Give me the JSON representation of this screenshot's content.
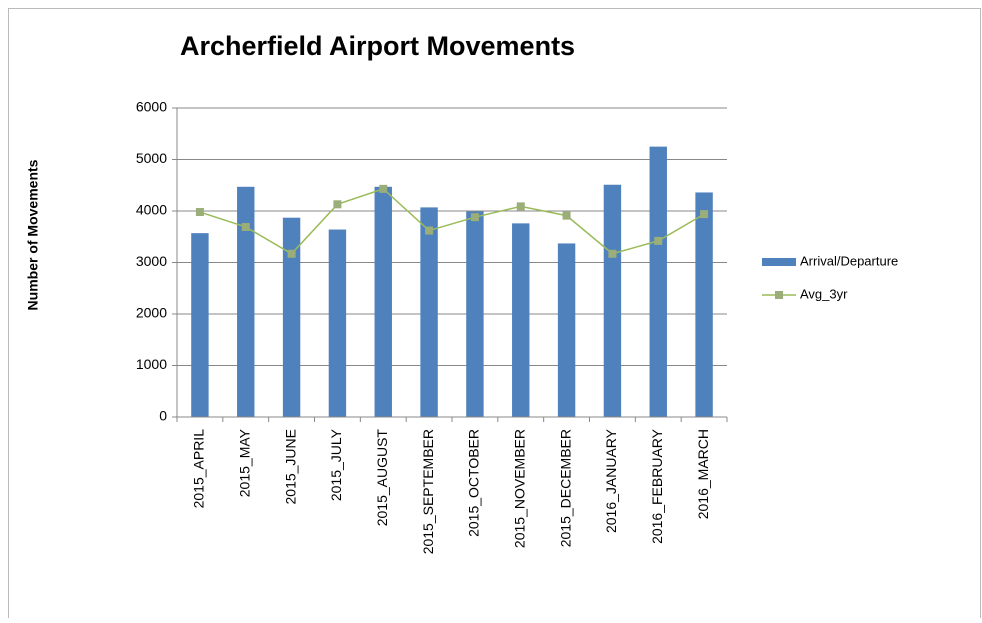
{
  "chart_data": {
    "type": "bar",
    "title": "Archerfield Airport Movements",
    "y_label": "Number of Movements",
    "categories": [
      "2015_APRIL",
      "2015_MAY",
      "2015_JUNE",
      "2015_JULY",
      "2015_AUGUST",
      "2015_SEPTEMBER",
      "2015_OCTOBER",
      "2015_NOVEMBER",
      "2015_DECEMBER",
      "2016_JANUARY",
      "2016_FEBRUARY",
      "2016_MARCH"
    ],
    "series": [
      {
        "name": "Arrival/Departure",
        "type": "bar",
        "color": "#4f81bd",
        "values": [
          3570,
          4470,
          3870,
          3640,
          4470,
          4070,
          3990,
          3760,
          3370,
          4510,
          5250,
          4360
        ]
      },
      {
        "name": "Avg_3yr",
        "type": "line",
        "color": "#9bbb59",
        "values": [
          3980,
          3690,
          3170,
          4130,
          4430,
          3620,
          3880,
          4090,
          3910,
          3170,
          3420,
          3940
        ]
      }
    ],
    "ylim": [
      0,
      6000
    ],
    "yticks": [
      0,
      1000,
      2000,
      3000,
      4000,
      5000,
      6000
    ],
    "grid": true,
    "legend": "right"
  }
}
